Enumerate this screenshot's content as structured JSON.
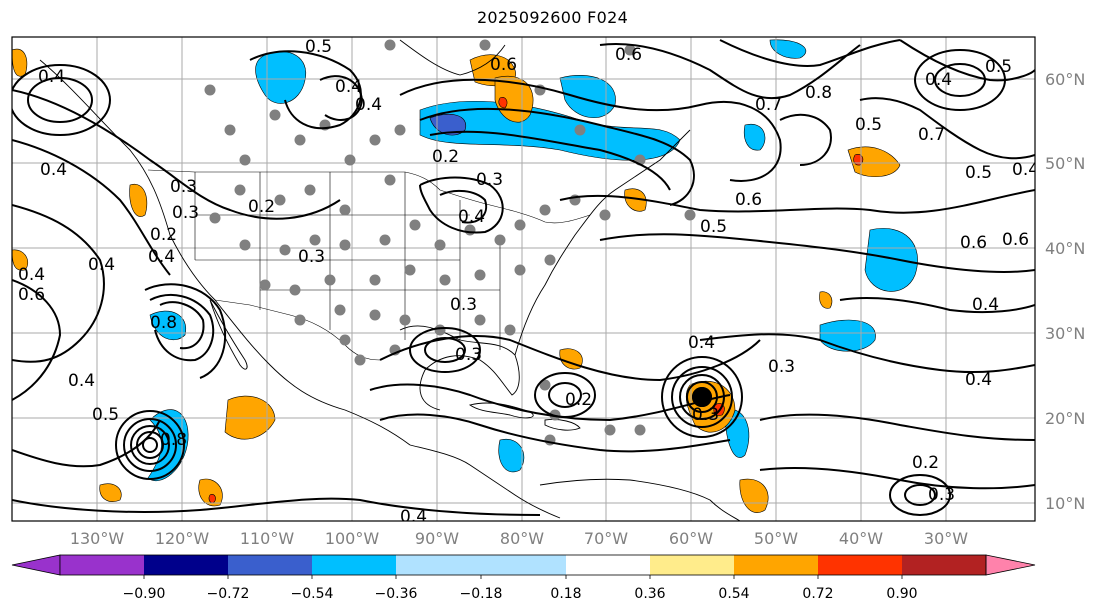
{
  "title": "2025092600 F024",
  "axes": {
    "lon_labels": [
      "130°W",
      "120°W",
      "110°W",
      "100°W",
      "90°W",
      "80°W",
      "70°W",
      "60°W",
      "50°W",
      "40°W",
      "30°W"
    ],
    "lon_values": [
      -130,
      -120,
      -110,
      -100,
      -90,
      -80,
      -70,
      -60,
      -50,
      -40,
      -30
    ],
    "lat_labels": [
      "60°N",
      "50°N",
      "40°N",
      "30°N",
      "20°N",
      "10°N"
    ],
    "lat_values": [
      60,
      50,
      40,
      30,
      20,
      10
    ],
    "lon_range": [
      -135.6,
      -15
    ],
    "lat_range": [
      7.5,
      65
    ],
    "label_color": "#808080"
  },
  "colorbar": {
    "tick_labels": [
      "−0.90",
      "−0.72",
      "−0.54",
      "−0.36",
      "−0.18",
      "0.18",
      "0.36",
      "0.54",
      "0.72",
      "0.90"
    ],
    "colors": [
      "#9932cc",
      "#00008b",
      "#3a5fcd",
      "#00bfff",
      "#b0e2ff",
      "#ffffff",
      "#ffec8b",
      "#ffa500",
      "#ff3300",
      "#b22222",
      "#ff82ab"
    ]
  },
  "contour_labels": [
    "0.5",
    "0.4",
    "0.6",
    "0.4",
    "0.6",
    "0.4",
    "0.5",
    "0.7",
    "0.8",
    "0.5",
    "0.4",
    "0.7",
    "0.5",
    "0.4",
    "0.6",
    "0.4",
    "0.3",
    "0.2",
    "0.3",
    "0.4",
    "0.3",
    "0.2",
    "0.4",
    "0.4",
    "0.4",
    "0.3",
    "0.2",
    "0.6",
    "0.5",
    "0.6",
    "0.8",
    "0.4",
    "0.3",
    "0.3",
    "0.4",
    "0.3",
    "0.2",
    "0.4",
    "0.3",
    "0.4",
    "0.2",
    "0.3",
    "0.5",
    "0.8",
    "0.6",
    "0.4"
  ]
}
